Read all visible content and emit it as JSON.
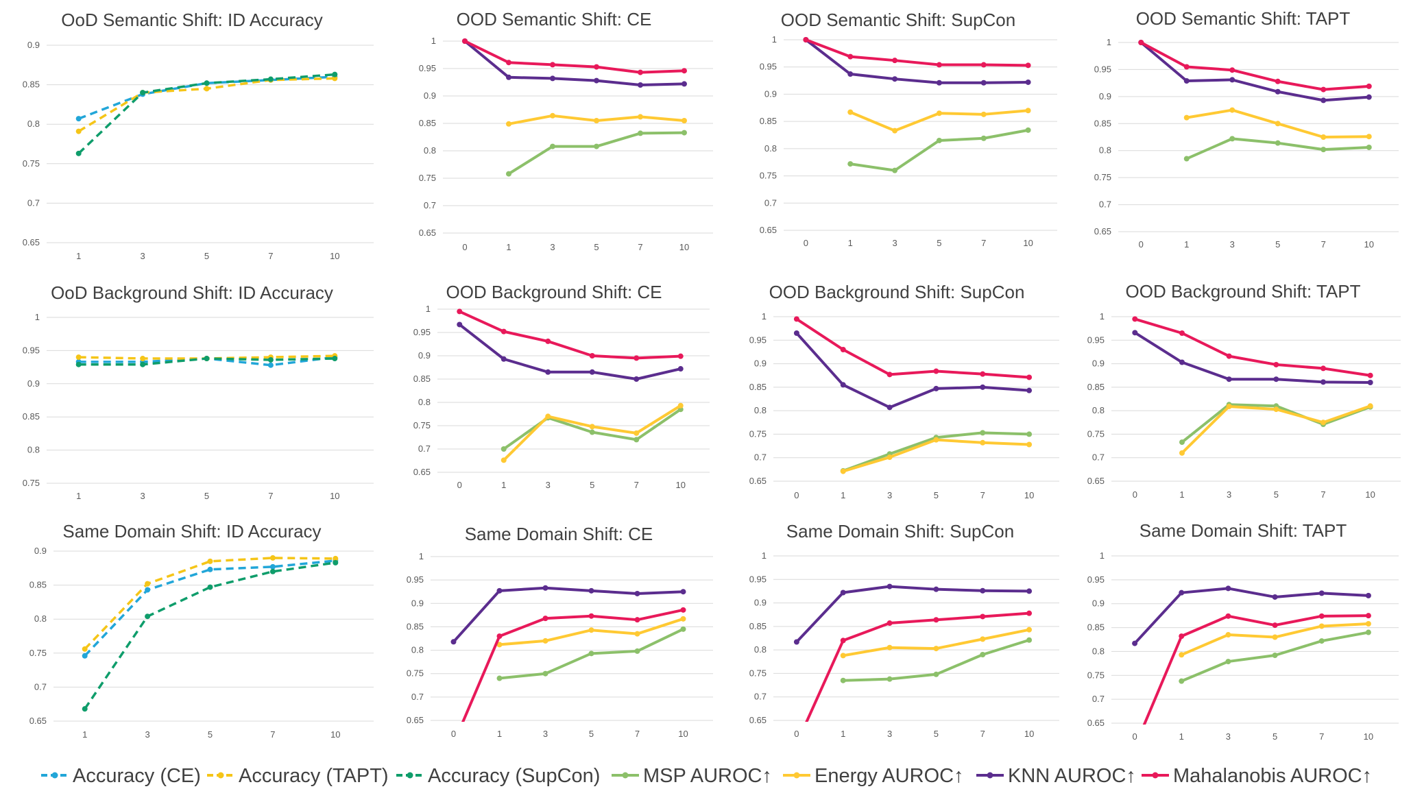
{
  "legend": [
    {
      "name": "Accuracy (CE)",
      "color": "#22a6d8",
      "dash": true
    },
    {
      "name": "Accuracy (TAPT)",
      "color": "#f5c518",
      "dash": true
    },
    {
      "name": "Accuracy (SupCon)",
      "color": "#0f9d6b",
      "dash": true
    },
    {
      "name": "MSP AUROC↑",
      "color": "#8cc06a",
      "dash": false
    },
    {
      "name": "Energy AUROC↑",
      "color": "#ffc933",
      "dash": false
    },
    {
      "name": "KNN AUROC↑",
      "color": "#5b2d8e",
      "dash": false
    },
    {
      "name": "Mahalanobis AUROC↑",
      "color": "#e8195a",
      "dash": false
    }
  ],
  "chart_data": [
    {
      "type": "line",
      "title": "OoD Semantic Shift: ID Accuracy",
      "categories": [
        "1",
        "3",
        "5",
        "7",
        "10"
      ],
      "ylim": [
        0.65,
        0.9
      ],
      "yticks": [
        "0.65",
        "0.7",
        "0.75",
        "0.8",
        "0.85",
        "0.9"
      ],
      "series": [
        {
          "name": "Accuracy (CE)",
          "values": [
            0.807,
            0.838,
            0.852,
            0.856,
            0.86
          ]
        },
        {
          "name": "Accuracy (TAPT)",
          "values": [
            0.791,
            0.84,
            0.845,
            0.856,
            0.858
          ]
        },
        {
          "name": "Accuracy (SupCon)",
          "values": [
            0.763,
            0.84,
            0.852,
            0.857,
            0.863
          ]
        }
      ]
    },
    {
      "type": "line",
      "title": "OOD Semantic Shift: CE",
      "categories": [
        "0",
        "1",
        "3",
        "5",
        "7",
        "10"
      ],
      "ylim": [
        0.65,
        1
      ],
      "yticks": [
        "0.65",
        "0.7",
        "0.75",
        "0.8",
        "0.85",
        "0.9",
        "0.95",
        "1"
      ],
      "series": [
        {
          "name": "MSP AUROC↑",
          "values": [
            null,
            0.758,
            0.808,
            0.808,
            0.832,
            0.833
          ]
        },
        {
          "name": "Energy AUROC↑",
          "values": [
            null,
            0.849,
            0.864,
            0.855,
            0.862,
            0.855
          ]
        },
        {
          "name": "KNN AUROC↑",
          "values": [
            1.0,
            0.934,
            0.932,
            0.928,
            0.92,
            0.922
          ]
        },
        {
          "name": "Mahalanobis AUROC↑",
          "values": [
            1.0,
            0.961,
            0.957,
            0.953,
            0.943,
            0.946
          ]
        }
      ]
    },
    {
      "type": "line",
      "title": "OOD Semantic Shift: SupCon",
      "categories": [
        "0",
        "1",
        "3",
        "5",
        "7",
        "10"
      ],
      "ylim": [
        0.65,
        1
      ],
      "yticks": [
        "0.65",
        "0.7",
        "0.75",
        "0.8",
        "0.85",
        "0.9",
        "0.95",
        "1"
      ],
      "series": [
        {
          "name": "MSP AUROC↑",
          "values": [
            null,
            0.772,
            0.76,
            0.815,
            0.819,
            0.834
          ]
        },
        {
          "name": "Energy AUROC↑",
          "values": [
            null,
            0.867,
            0.833,
            0.865,
            0.863,
            0.87
          ]
        },
        {
          "name": "KNN AUROC↑",
          "values": [
            1.0,
            0.937,
            0.928,
            0.921,
            0.921,
            0.922
          ]
        },
        {
          "name": "Mahalanobis AUROC↑",
          "values": [
            1.0,
            0.969,
            0.962,
            0.954,
            0.954,
            0.953
          ]
        }
      ]
    },
    {
      "type": "line",
      "title": "OOD Semantic Shift: TAPT",
      "categories": [
        "0",
        "1",
        "3",
        "5",
        "7",
        "10"
      ],
      "ylim": [
        0.65,
        1
      ],
      "yticks": [
        "0.65",
        "0.7",
        "0.75",
        "0.8",
        "0.85",
        "0.9",
        "0.95",
        "1"
      ],
      "series": [
        {
          "name": "MSP AUROC↑",
          "values": [
            null,
            0.785,
            0.822,
            0.814,
            0.802,
            0.806
          ]
        },
        {
          "name": "Energy AUROC↑",
          "values": [
            null,
            0.861,
            0.875,
            0.85,
            0.825,
            0.826
          ]
        },
        {
          "name": "KNN AUROC↑",
          "values": [
            1.0,
            0.929,
            0.931,
            0.909,
            0.893,
            0.899
          ]
        },
        {
          "name": "Mahalanobis AUROC↑",
          "values": [
            1.0,
            0.955,
            0.949,
            0.928,
            0.913,
            0.919
          ]
        }
      ]
    },
    {
      "type": "line",
      "title": "OoD Background Shift: ID Accuracy",
      "categories": [
        "1",
        "3",
        "5",
        "7",
        "10"
      ],
      "ylim": [
        0.75,
        1
      ],
      "yticks": [
        "0.75",
        "0.8",
        "0.85",
        "0.9",
        "0.95",
        "1"
      ],
      "series": [
        {
          "name": "Accuracy (CE)",
          "values": [
            0.933,
            0.933,
            0.938,
            0.928,
            0.94
          ]
        },
        {
          "name": "Accuracy (TAPT)",
          "values": [
            0.94,
            0.938,
            0.938,
            0.94,
            0.942
          ]
        },
        {
          "name": "Accuracy (SupCon)",
          "values": [
            0.929,
            0.929,
            0.938,
            0.936,
            0.938
          ]
        }
      ]
    },
    {
      "type": "line",
      "title": "OOD Background Shift: CE",
      "categories": [
        "0",
        "1",
        "3",
        "5",
        "7",
        "10"
      ],
      "ylim": [
        0.65,
        1
      ],
      "yticks": [
        "0.65",
        "0.7",
        "0.75",
        "0.8",
        "0.85",
        "0.9",
        "0.95",
        "1"
      ],
      "series": [
        {
          "name": "MSP AUROC↑",
          "values": [
            null,
            0.7,
            0.767,
            0.736,
            0.72,
            0.785
          ]
        },
        {
          "name": "Energy AUROC↑",
          "values": [
            null,
            0.676,
            0.77,
            0.748,
            0.734,
            0.793
          ]
        },
        {
          "name": "KNN AUROC↑",
          "values": [
            0.967,
            0.893,
            0.865,
            0.865,
            0.85,
            0.872
          ]
        },
        {
          "name": "Mahalanobis AUROC↑",
          "values": [
            0.995,
            0.952,
            0.931,
            0.9,
            0.895,
            0.899
          ]
        }
      ]
    },
    {
      "type": "line",
      "title": "OOD Background Shift: SupCon",
      "categories": [
        "0",
        "1",
        "3",
        "5",
        "7",
        "10"
      ],
      "ylim": [
        0.65,
        1
      ],
      "yticks": [
        "0.65",
        "0.7",
        "0.75",
        "0.8",
        "0.85",
        "0.9",
        "0.95",
        "1"
      ],
      "series": [
        {
          "name": "MSP AUROC↑",
          "values": [
            null,
            0.672,
            0.708,
            0.743,
            0.753,
            0.75
          ]
        },
        {
          "name": "Energy AUROC↑",
          "values": [
            null,
            0.671,
            0.701,
            0.738,
            0.732,
            0.728
          ]
        },
        {
          "name": "KNN AUROC↑",
          "values": [
            0.965,
            0.855,
            0.807,
            0.847,
            0.85,
            0.843
          ]
        },
        {
          "name": "Mahalanobis AUROC↑",
          "values": [
            0.995,
            0.93,
            0.877,
            0.884,
            0.878,
            0.871
          ]
        }
      ]
    },
    {
      "type": "line",
      "title": "OOD Background Shift: TAPT",
      "categories": [
        "0",
        "1",
        "3",
        "5",
        "7",
        "10"
      ],
      "ylim": [
        0.65,
        1
      ],
      "yticks": [
        "0.65",
        "0.7",
        "0.75",
        "0.8",
        "0.85",
        "0.9",
        "0.95",
        "1"
      ],
      "series": [
        {
          "name": "MSP AUROC↑",
          "values": [
            null,
            0.733,
            0.813,
            0.81,
            0.771,
            0.808
          ]
        },
        {
          "name": "Energy AUROC↑",
          "values": [
            null,
            0.71,
            0.809,
            0.803,
            0.775,
            0.81
          ]
        },
        {
          "name": "KNN AUROC↑",
          "values": [
            0.966,
            0.903,
            0.867,
            0.867,
            0.861,
            0.86
          ]
        },
        {
          "name": "Mahalanobis AUROC↑",
          "values": [
            0.995,
            0.965,
            0.916,
            0.898,
            0.89,
            0.875
          ]
        }
      ]
    },
    {
      "type": "line",
      "title": "Same Domain Shift: ID Accuracy",
      "categories": [
        "1",
        "3",
        "5",
        "7",
        "10"
      ],
      "ylim": [
        0.65,
        0.9
      ],
      "yticks": [
        "0.65",
        "0.7",
        "0.75",
        "0.8",
        "0.85",
        "0.9"
      ],
      "series": [
        {
          "name": "Accuracy (CE)",
          "values": [
            0.746,
            0.843,
            0.873,
            0.877,
            0.886
          ]
        },
        {
          "name": "Accuracy (TAPT)",
          "values": [
            0.756,
            0.852,
            0.885,
            0.89,
            0.889
          ]
        },
        {
          "name": "Accuracy (SupCon)",
          "values": [
            0.668,
            0.804,
            0.847,
            0.87,
            0.883
          ]
        }
      ]
    },
    {
      "type": "line",
      "title": "Same Domain Shift: CE",
      "categories": [
        "0",
        "1",
        "3",
        "5",
        "7",
        "10"
      ],
      "ylim": [
        0.65,
        1
      ],
      "yticks": [
        "0.65",
        "0.7",
        "0.75",
        "0.8",
        "0.85",
        "0.9",
        "0.95",
        "1"
      ],
      "series": [
        {
          "name": "MSP AUROC↑",
          "values": [
            null,
            0.74,
            0.75,
            0.793,
            0.798,
            0.845
          ]
        },
        {
          "name": "Energy AUROC↑",
          "values": [
            null,
            0.812,
            0.82,
            0.843,
            0.835,
            0.867
          ]
        },
        {
          "name": "KNN AUROC↑",
          "values": [
            0.818,
            0.927,
            0.933,
            0.927,
            0.921,
            0.925
          ]
        },
        {
          "name": "Mahalanobis AUROC↑",
          "values": [
            0.6,
            0.83,
            0.868,
            0.873,
            0.865,
            0.886
          ]
        }
      ]
    },
    {
      "type": "line",
      "title": "Same Domain Shift: SupCon",
      "categories": [
        "0",
        "1",
        "3",
        "5",
        "7",
        "10"
      ],
      "ylim": [
        0.65,
        1
      ],
      "yticks": [
        "0.65",
        "0.7",
        "0.75",
        "0.8",
        "0.85",
        "0.9",
        "0.95",
        "1"
      ],
      "series": [
        {
          "name": "MSP AUROC↑",
          "values": [
            null,
            0.735,
            0.738,
            0.748,
            0.79,
            0.821
          ]
        },
        {
          "name": "Energy AUROC↑",
          "values": [
            null,
            0.788,
            0.805,
            0.803,
            0.823,
            0.843
          ]
        },
        {
          "name": "KNN AUROC↑",
          "values": [
            0.817,
            0.922,
            0.935,
            0.929,
            0.926,
            0.925
          ]
        },
        {
          "name": "Mahalanobis AUROC↑",
          "values": [
            0.6,
            0.82,
            0.857,
            0.864,
            0.871,
            0.878
          ]
        }
      ]
    },
    {
      "type": "line",
      "title": "Same Domain Shift: TAPT",
      "categories": [
        "0",
        "1",
        "3",
        "5",
        "7",
        "10"
      ],
      "ylim": [
        0.65,
        1
      ],
      "yticks": [
        "0.65",
        "0.7",
        "0.75",
        "0.8",
        "0.85",
        "0.9",
        "0.95",
        "1"
      ],
      "series": [
        {
          "name": "MSP AUROC↑",
          "values": [
            null,
            0.738,
            0.779,
            0.792,
            0.822,
            0.84
          ]
        },
        {
          "name": "Energy AUROC↑",
          "values": [
            null,
            0.793,
            0.835,
            0.83,
            0.853,
            0.858
          ]
        },
        {
          "name": "KNN AUROC↑",
          "values": [
            0.817,
            0.923,
            0.932,
            0.914,
            0.922,
            0.917
          ]
        },
        {
          "name": "Mahalanobis AUROC↑",
          "values": [
            0.6,
            0.832,
            0.874,
            0.855,
            0.874,
            0.875
          ]
        }
      ]
    }
  ]
}
